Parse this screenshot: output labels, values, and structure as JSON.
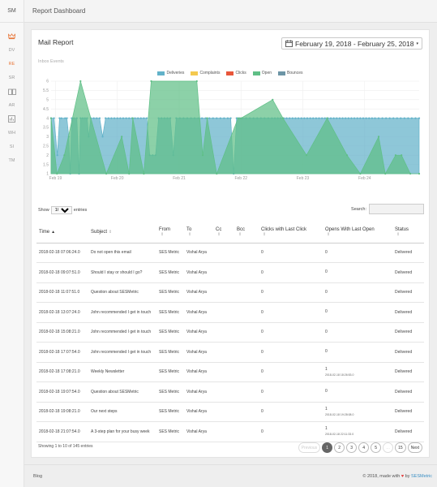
{
  "sidebar": {
    "brand": "SM",
    "items": [
      {
        "label": "DV"
      },
      {
        "label": "RE"
      },
      {
        "label": "SR"
      },
      {
        "label": "AR"
      },
      {
        "label": "WH"
      },
      {
        "label": "SI"
      },
      {
        "label": "TM"
      }
    ],
    "icons": [
      "crown-icon",
      "book-icon",
      "report-icon"
    ]
  },
  "topbar": {
    "title": "Report Dashboard"
  },
  "card": {
    "title": "Mail Report",
    "date_range": "February 19, 2018 - February 25, 2018",
    "subtitle": "Inbox Events"
  },
  "chart_data": {
    "type": "area",
    "legend": [
      "Deliveries",
      "Complaints",
      "Clicks",
      "Open",
      "Bounces"
    ],
    "colors": {
      "Deliveries": "#62b2c9",
      "Complaints": "#f4c94f",
      "Clicks": "#e8563a",
      "Open": "#5fbf86",
      "Bounces": "#6d95a6"
    },
    "x_ticks": [
      "Feb 19",
      "Feb 20",
      "Feb 21",
      "Feb 22",
      "Feb 23",
      "Feb 24"
    ],
    "ylim": [
      1,
      6
    ],
    "y_ticks": [
      "1",
      "1.5",
      "2",
      "2.5",
      "3",
      "3.5",
      "4",
      "4.5",
      "5",
      "5.5",
      "6"
    ],
    "series": [
      {
        "name": "Deliveries",
        "points": [
          [
            0.0,
            4
          ],
          [
            0.4,
            4
          ],
          [
            0.85,
            2
          ],
          [
            1.15,
            4
          ],
          [
            1.4,
            4
          ],
          [
            1.9,
            4
          ],
          [
            2.15,
            4
          ],
          [
            2.4,
            3
          ],
          [
            2.6,
            1
          ],
          [
            2.8,
            4
          ],
          [
            3.1,
            4
          ],
          [
            3.5,
            4
          ],
          [
            3.8,
            1
          ],
          [
            4.0,
            4
          ],
          [
            4.3,
            4
          ],
          [
            4.6,
            4
          ],
          [
            4.9,
            4
          ],
          [
            5.1,
            3
          ],
          [
            5.4,
            4
          ],
          [
            5.8,
            4
          ],
          [
            6.2,
            4
          ],
          [
            6.6,
            4
          ],
          [
            7.0,
            3
          ],
          [
            7.4,
            4
          ],
          [
            7.8,
            4
          ],
          [
            8.2,
            4
          ],
          [
            8.6,
            4
          ],
          [
            9.0,
            4
          ],
          [
            9.4,
            4
          ],
          [
            9.8,
            4
          ],
          [
            10.2,
            4
          ],
          [
            10.6,
            4
          ],
          [
            11.0,
            4
          ],
          [
            11.4,
            4
          ],
          [
            11.8,
            4
          ],
          [
            12.2,
            4
          ],
          [
            12.6,
            4
          ],
          [
            13.0,
            4
          ],
          [
            13.4,
            2
          ],
          [
            13.8,
            2
          ],
          [
            14.2,
            2
          ],
          [
            14.6,
            4
          ],
          [
            15.0,
            4
          ],
          [
            15.4,
            4
          ],
          [
            15.8,
            4
          ],
          [
            16.2,
            4
          ],
          [
            16.6,
            2
          ],
          [
            17.0,
            4
          ],
          [
            17.5,
            4
          ],
          [
            18.0,
            4
          ],
          [
            18.5,
            4
          ],
          [
            19.0,
            4
          ],
          [
            19.5,
            4
          ],
          [
            20.0,
            4
          ],
          [
            20.5,
            4
          ],
          [
            21.0,
            4
          ],
          [
            21.5,
            4
          ],
          [
            22.0,
            4
          ],
          [
            22.5,
            4
          ],
          [
            23.0,
            4
          ],
          [
            23.5,
            4
          ],
          [
            24.0,
            4
          ],
          [
            24.4,
            4
          ],
          [
            24.8,
            1
          ],
          [
            25.2,
            4
          ],
          [
            25.6,
            4
          ],
          [
            26.0,
            4
          ],
          [
            26.5,
            4
          ],
          [
            27.0,
            4
          ],
          [
            27.5,
            4
          ],
          [
            28.0,
            4
          ],
          [
            28.5,
            4
          ],
          [
            29.0,
            4
          ],
          [
            29.5,
            4
          ],
          [
            30.0,
            4
          ],
          [
            30.4,
            4
          ],
          [
            30.8,
            4
          ],
          [
            31.2,
            4
          ],
          [
            31.6,
            4
          ],
          [
            32.0,
            4
          ],
          [
            32.4,
            4
          ],
          [
            32.8,
            4
          ],
          [
            33.2,
            4
          ],
          [
            33.6,
            4
          ],
          [
            34.0,
            4
          ],
          [
            34.4,
            4
          ],
          [
            34.8,
            4
          ],
          [
            35.2,
            4
          ],
          [
            35.6,
            4
          ],
          [
            36.0,
            4
          ],
          [
            36.4,
            4
          ],
          [
            36.8,
            4
          ],
          [
            37.2,
            4
          ],
          [
            37.6,
            4
          ],
          [
            38.0,
            4
          ],
          [
            38.4,
            4
          ],
          [
            38.8,
            4
          ],
          [
            39.2,
            4
          ],
          [
            39.6,
            4
          ],
          [
            40.0,
            4
          ],
          [
            40.4,
            4
          ],
          [
            40.8,
            4
          ],
          [
            41.2,
            4
          ],
          [
            41.6,
            4
          ],
          [
            42.0,
            4
          ],
          [
            42.4,
            4
          ],
          [
            42.8,
            4
          ],
          [
            43.2,
            4
          ],
          [
            43.6,
            4
          ],
          [
            44.0,
            4
          ],
          [
            44.5,
            4
          ],
          [
            45.0,
            4
          ],
          [
            45.5,
            4
          ],
          [
            46.0,
            4
          ],
          [
            46.5,
            4
          ],
          [
            47.0,
            4
          ],
          [
            47.5,
            4
          ],
          [
            48.0,
            4
          ],
          [
            48.5,
            4
          ],
          [
            49.0,
            4
          ],
          [
            49.5,
            4
          ],
          [
            50.0,
            4
          ]
        ]
      },
      {
        "name": "Open",
        "points": [
          [
            0.0,
            4
          ],
          [
            0.8,
            1
          ],
          [
            1.8,
            2
          ],
          [
            4.0,
            6
          ],
          [
            7.5,
            1
          ],
          [
            9.6,
            3
          ],
          [
            10.6,
            1
          ],
          [
            11.1,
            4
          ],
          [
            12.6,
            1
          ],
          [
            13.6,
            6
          ],
          [
            19.8,
            6
          ],
          [
            20.6,
            2
          ],
          [
            21.2,
            4
          ],
          [
            22.5,
            1
          ],
          [
            25.4,
            4
          ],
          [
            25.8,
            4
          ],
          [
            30.1,
            5
          ],
          [
            31.5,
            4
          ],
          [
            34.7,
            2
          ],
          [
            37.5,
            4
          ],
          [
            40.2,
            2
          ],
          [
            42.0,
            1
          ],
          [
            44.5,
            3
          ],
          [
            45.4,
            1
          ],
          [
            46.8,
            2
          ],
          [
            47.6,
            2
          ],
          [
            48.8,
            1
          ],
          [
            50.0,
            1
          ]
        ]
      }
    ]
  },
  "table_controls": {
    "show_label": "Show",
    "entries_value": "10",
    "entries_label": "entries",
    "search_label": "Search:"
  },
  "table": {
    "columns": [
      "Time",
      "Subject",
      "From",
      "To",
      "Cc",
      "Bcc",
      "Clicks with Last Click",
      "Opens With Last Open",
      "Status"
    ],
    "rows": [
      {
        "time": "2018-02-18 07:06:24.0",
        "subject": "Do not open this email",
        "from": "SES Metric",
        "to": "Vishal Arya",
        "cc": "",
        "bcc": "",
        "clicks": "0",
        "opens": "0",
        "opens_sub": "",
        "status": "Delivered"
      },
      {
        "time": "2018-02-18 09:07:51.0",
        "subject": "Should I stay or should I go?",
        "from": "SES Metric",
        "to": "Vishal Arya",
        "cc": "",
        "bcc": "",
        "clicks": "0",
        "opens": "0",
        "opens_sub": "",
        "status": "Delivered"
      },
      {
        "time": "2018-02-18 11:07:51.0",
        "subject": "Question about SESMetric",
        "from": "SES Metric",
        "to": "Vishal Arya",
        "cc": "",
        "bcc": "",
        "clicks": "0",
        "opens": "0",
        "opens_sub": "",
        "status": "Delivered"
      },
      {
        "time": "2018-02-18 13:07:24.0",
        "subject": "John recommended I get in touch",
        "from": "SES Metric",
        "to": "Vishal Arya",
        "cc": "",
        "bcc": "",
        "clicks": "0",
        "opens": "0",
        "opens_sub": "",
        "status": "Delivered"
      },
      {
        "time": "2018-02-18 15:08:21.0",
        "subject": "John recommended I get in touch",
        "from": "SES Metric",
        "to": "Vishal Arya",
        "cc": "",
        "bcc": "",
        "clicks": "0",
        "opens": "0",
        "opens_sub": "",
        "status": "Delivered"
      },
      {
        "time": "2018-02-18 17:07:54.0",
        "subject": "John recommended I get in touch",
        "from": "SES Metric",
        "to": "Vishal Arya",
        "cc": "",
        "bcc": "",
        "clicks": "0",
        "opens": "0",
        "opens_sub": "",
        "status": "Delivered"
      },
      {
        "time": "2018-02-18 17:08:21.0",
        "subject": "Weekly Newsletter",
        "from": "SES Metric",
        "to": "Vishal Arya",
        "cc": "",
        "bcc": "",
        "clicks": "0",
        "opens": "1",
        "opens_sub": "2018-02-18 18:26:53.0",
        "status": "Delivered"
      },
      {
        "time": "2018-02-18 19:07:54.0",
        "subject": "Question about SESMetric",
        "from": "SES Metric",
        "to": "Vishal Arya",
        "cc": "",
        "bcc": "",
        "clicks": "0",
        "opens": "0",
        "opens_sub": "",
        "status": "Delivered"
      },
      {
        "time": "2018-02-18 19:08:21.0",
        "subject": "Our next steps",
        "from": "SES Metric",
        "to": "Vishal Arya",
        "cc": "",
        "bcc": "",
        "clicks": "0",
        "opens": "1",
        "opens_sub": "2018-02-18 19:28:08.0",
        "status": "Delivered"
      },
      {
        "time": "2018-02-18 21:07:54.0",
        "subject": "A 3-step plan for your busy week",
        "from": "SES Metric",
        "to": "Vishal Arya",
        "cc": "",
        "bcc": "",
        "clicks": "0",
        "opens": "1",
        "opens_sub": "2018-02-18 22:11:33.0",
        "status": "Delivered"
      }
    ]
  },
  "info_text": "Showing 1 to 10 of 145 entries",
  "pagination": {
    "prev": "Previous",
    "pages": [
      "1",
      "2",
      "3",
      "4",
      "5",
      "…",
      "15"
    ],
    "next": "Next"
  },
  "footer": {
    "left": "Blog",
    "copyright": "© 2018, made with",
    "by": "by",
    "link": "SESMetric"
  }
}
